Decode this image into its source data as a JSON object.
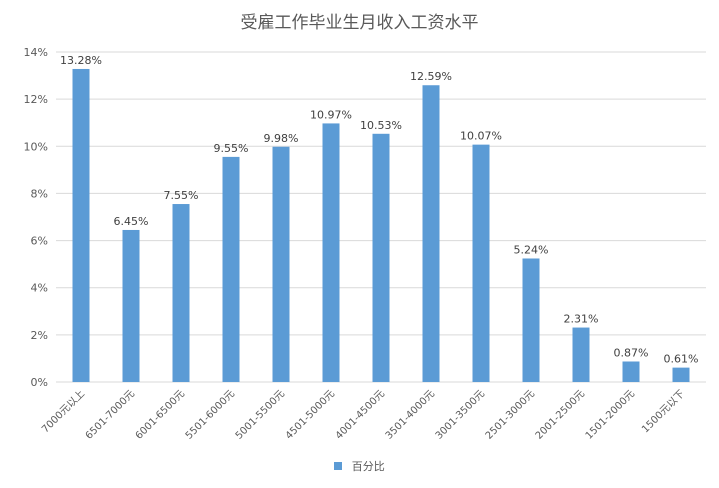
{
  "chart_data": {
    "type": "bar",
    "title": "受雇工作毕业生月收入工资水平",
    "categories": [
      "7000元以上",
      "6501-7000元",
      "6001-6500元",
      "5501-6000元",
      "5001-5500元",
      "4501-5000元",
      "4001-4500元",
      "3501-4000元",
      "3001-3500元",
      "2501-3000元",
      "2001-2500元",
      "1501-2000元",
      "1500元以下"
    ],
    "series": [
      {
        "name": "百分比",
        "values": [
          13.28,
          6.45,
          7.55,
          9.55,
          9.98,
          10.97,
          10.53,
          12.59,
          10.07,
          5.24,
          2.31,
          0.87,
          0.61
        ],
        "labels": [
          "13.28%",
          "6.45%",
          "7.55%",
          "9.55%",
          "9.98%",
          "10.97%",
          "10.53%",
          "12.59%",
          "10.07%",
          "5.24%",
          "2.31%",
          "0.87%",
          "0.61%"
        ]
      }
    ],
    "yticks": [
      "0%",
      "2%",
      "4%",
      "6%",
      "8%",
      "10%",
      "12%",
      "14%"
    ],
    "ylim": [
      0,
      14
    ],
    "grid": true,
    "legend_position": "bottom",
    "bar_color": "#5b9bd5"
  }
}
